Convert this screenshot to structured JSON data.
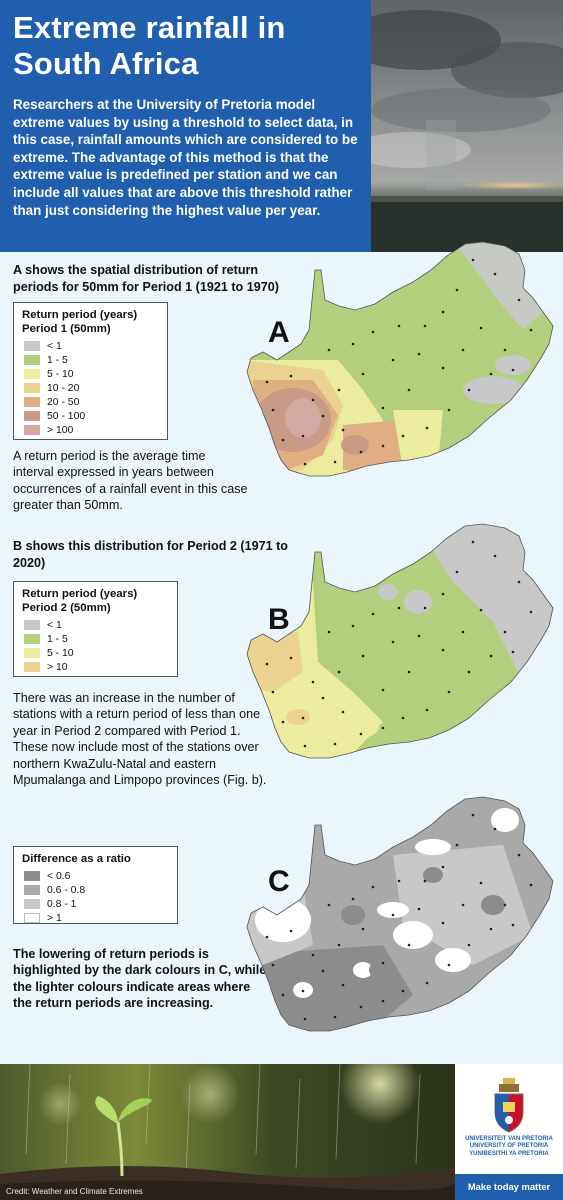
{
  "header": {
    "title_line1": "Extreme rainfall in",
    "title_line2": "South Africa",
    "intro": "Researchers at the University of Pretoria model extreme values by using a threshold to select data, in this case, rainfall amounts which are considered to be extreme. The advantage of this method is that the extreme value is predefined per station and we can include all values that are above this threshold rather than just considering the highest value per year."
  },
  "section_a": {
    "heading": "A shows the spatial distribution of return periods for 50mm for Period 1 (1921 to 1970)",
    "map_label": "A",
    "legend_title_1": "Return period (years)",
    "legend_title_2": "Period 1 (50mm)",
    "legend": [
      {
        "label": "< 1",
        "color": "#c8c8c8"
      },
      {
        "label": "1 - 5",
        "color": "#b3cf7e"
      },
      {
        "label": "5 - 10",
        "color": "#ecec9f"
      },
      {
        "label": "10 - 20",
        "color": "#ecd290"
      },
      {
        "label": "20 - 50",
        "color": "#dfae82"
      },
      {
        "label": "50 - 100",
        "color": "#c99a86"
      },
      {
        "label": "> 100",
        "color": "#d4a9a4"
      }
    ],
    "note": "A return period is the average time interval expressed in years between occurrences of a rainfall event in this case greater than 50mm."
  },
  "section_b": {
    "heading": "B shows this distribution for Period 2 (1971 to 2020)",
    "map_label": "B",
    "legend_title_1": "Return period (years)",
    "legend_title_2": "Period 2 (50mm)",
    "legend": [
      {
        "label": "< 1",
        "color": "#c8c8c8"
      },
      {
        "label": "1 - 5",
        "color": "#b3cf7e"
      },
      {
        "label": "5 - 10",
        "color": "#ecec9f"
      },
      {
        "label": "> 10",
        "color": "#ecd290"
      }
    ],
    "note": "There was an increase in the number of stations with a return period of less than one year in Period 2 compared with Period 1. These now include most of the stations over northern KwaZulu-Natal and eastern Mpumalanga and Limpopo provinces (Fig. b)."
  },
  "section_c": {
    "map_label": "C",
    "legend_title": "Difference as a ratio",
    "legend": [
      {
        "label": "< 0.6",
        "color": "#8c8c8c"
      },
      {
        "label": "0.6 - 0.8",
        "color": "#a9a9a9"
      },
      {
        "label": "0.8 - 1",
        "color": "#c8c8c8"
      },
      {
        "label": "> 1",
        "color": "#ffffff"
      }
    ],
    "note": "The lowering of return periods is highlighted by the dark colours in C, while the lighter colours indicate areas where the return periods are increasing."
  },
  "footer": {
    "credit": "Credit: Weather and Climate Extremes",
    "university_line1": "UNIVERSITEIT VAN PRETORIA",
    "university_line2": "UNIVERSITY OF PRETORIA",
    "university_line3": "YUNIBESITHI YA PRETORIA",
    "tagline": "Make today matter"
  }
}
